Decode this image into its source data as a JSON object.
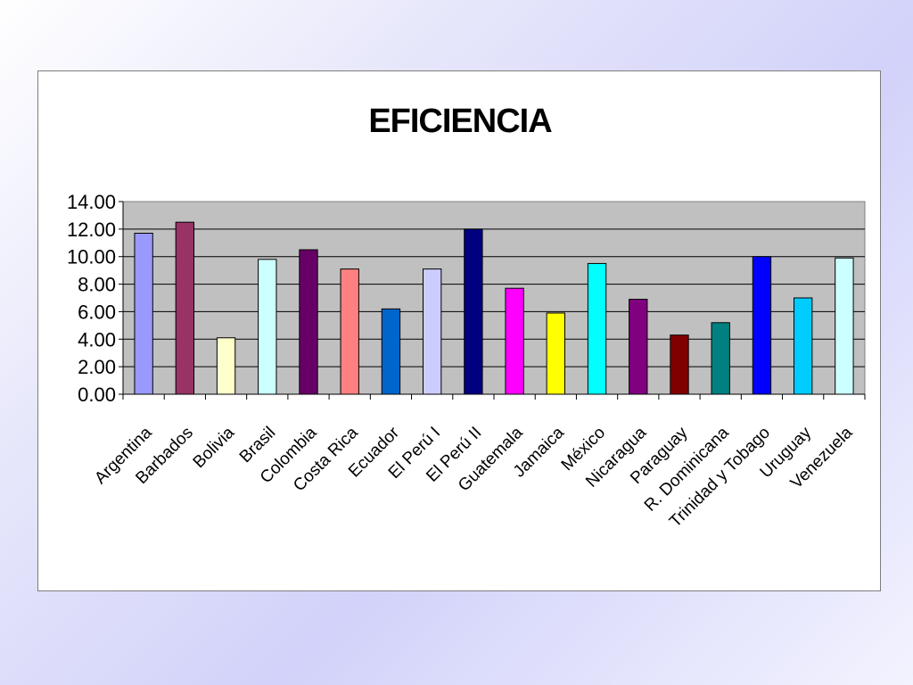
{
  "chart_data": {
    "type": "bar",
    "title": "EFICIENCIA",
    "xlabel": "",
    "ylabel": "",
    "ylim": [
      0,
      14
    ],
    "y_ticks": [
      "0.00",
      "2.00",
      "4.00",
      "6.00",
      "8.00",
      "10.00",
      "12.00",
      "14.00"
    ],
    "grid": true,
    "legend": "none",
    "plot_background": "#c0c0c0",
    "categories": [
      "Argentina",
      "Barbados",
      "Bolivia",
      "Brasil",
      "Colombia",
      "Costa Rica",
      "Ecuador",
      "El Perú I",
      "El Perú II",
      "Guatemala",
      "Jamaica",
      "México",
      "Nicaragua",
      "Paraguay",
      "R. Dominicana",
      "Trinidad y Tobago",
      "Uruguay",
      "Venezuela"
    ],
    "values": [
      11.7,
      12.5,
      4.1,
      9.8,
      10.5,
      9.1,
      6.2,
      9.1,
      12.0,
      7.7,
      5.9,
      9.5,
      6.9,
      4.3,
      5.2,
      10.0,
      7.0,
      9.9
    ],
    "colors": [
      "#9999ff",
      "#993366",
      "#ffffcc",
      "#ccffff",
      "#660066",
      "#ff8080",
      "#0066cc",
      "#ccccff",
      "#000080",
      "#ff00ff",
      "#ffff00",
      "#00ffff",
      "#800080",
      "#800000",
      "#008080",
      "#0000ff",
      "#00ccff",
      "#ccffff"
    ]
  }
}
